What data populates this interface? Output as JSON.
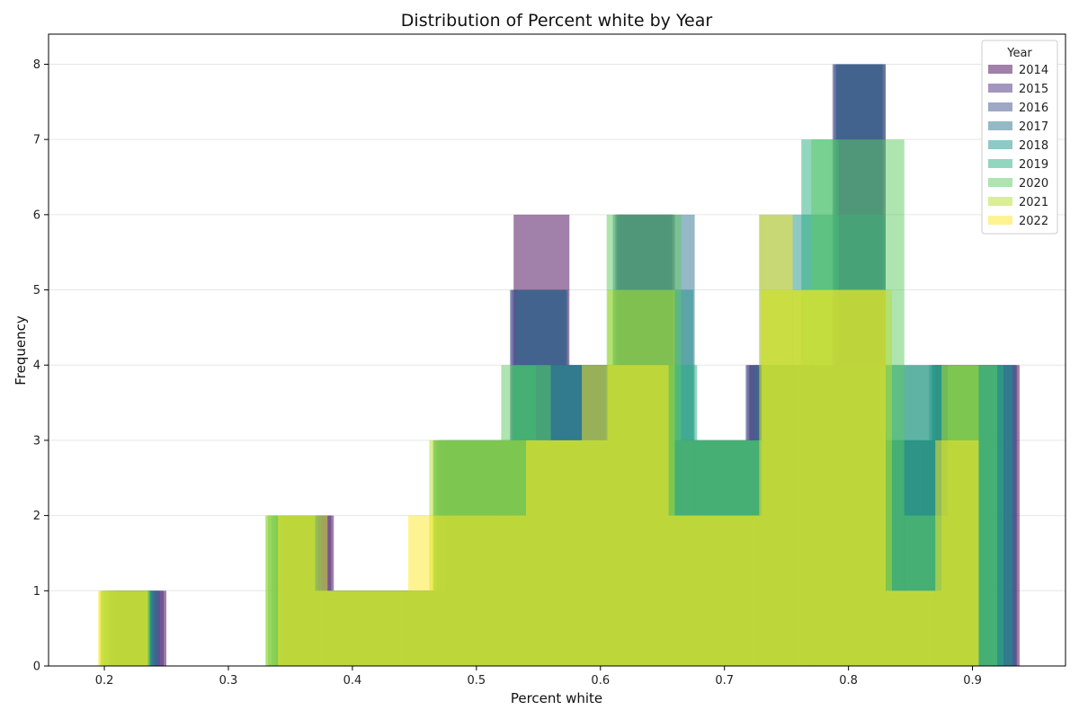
{
  "chart_data": {
    "type": "histogram",
    "title": "Distribution of Percent white by Year",
    "xlabel": "Percent white",
    "ylabel": "Frequency",
    "xlim": [
      0.155,
      0.975
    ],
    "ylim": [
      0,
      8.4
    ],
    "x_ticks": [
      "0.2",
      "0.3",
      "0.4",
      "0.5",
      "0.6",
      "0.7",
      "0.8",
      "0.9"
    ],
    "y_ticks": [
      "0",
      "1",
      "2",
      "3",
      "4",
      "5",
      "6",
      "7",
      "8"
    ],
    "grid": "y",
    "legend": {
      "title": "Year",
      "position": "top-right"
    },
    "series": [
      {
        "name": "2014",
        "color": "#440154",
        "bins": [
          {
            "x0": 0.21,
            "x1": 0.25,
            "y": 1
          },
          {
            "x0": 0.345,
            "x1": 0.385,
            "y": 2
          },
          {
            "x0": 0.385,
            "x1": 0.43,
            "y": 1
          },
          {
            "x0": 0.43,
            "x1": 0.475,
            "y": 1
          },
          {
            "x0": 0.475,
            "x1": 0.53,
            "y": 3
          },
          {
            "x0": 0.53,
            "x1": 0.575,
            "y": 6
          },
          {
            "x0": 0.575,
            "x1": 0.615,
            "y": 4
          },
          {
            "x0": 0.615,
            "x1": 0.66,
            "y": 6
          },
          {
            "x0": 0.66,
            "x1": 0.72,
            "y": 3
          },
          {
            "x0": 0.72,
            "x1": 0.79,
            "y": 4
          },
          {
            "x0": 0.79,
            "x1": 0.83,
            "y": 8
          },
          {
            "x0": 0.83,
            "x1": 0.87,
            "y": 3
          },
          {
            "x0": 0.87,
            "x1": 0.938,
            "y": 4
          }
        ]
      },
      {
        "name": "2015",
        "color": "#472d7b",
        "bins": [
          {
            "x0": 0.208,
            "x1": 0.248,
            "y": 1
          },
          {
            "x0": 0.342,
            "x1": 0.383,
            "y": 2
          },
          {
            "x0": 0.383,
            "x1": 0.425,
            "y": 1
          },
          {
            "x0": 0.425,
            "x1": 0.47,
            "y": 1
          },
          {
            "x0": 0.47,
            "x1": 0.528,
            "y": 3
          },
          {
            "x0": 0.528,
            "x1": 0.573,
            "y": 5
          },
          {
            "x0": 0.573,
            "x1": 0.613,
            "y": 4
          },
          {
            "x0": 0.613,
            "x1": 0.658,
            "y": 6
          },
          {
            "x0": 0.658,
            "x1": 0.718,
            "y": 3
          },
          {
            "x0": 0.718,
            "x1": 0.788,
            "y": 4
          },
          {
            "x0": 0.788,
            "x1": 0.828,
            "y": 8
          },
          {
            "x0": 0.828,
            "x1": 0.868,
            "y": 3
          },
          {
            "x0": 0.868,
            "x1": 0.936,
            "y": 4
          }
        ]
      },
      {
        "name": "2016",
        "color": "#3b528b",
        "bins": [
          {
            "x0": 0.205,
            "x1": 0.245,
            "y": 1
          },
          {
            "x0": 0.34,
            "x1": 0.38,
            "y": 2
          },
          {
            "x0": 0.38,
            "x1": 0.423,
            "y": 1
          },
          {
            "x0": 0.423,
            "x1": 0.468,
            "y": 1
          },
          {
            "x0": 0.468,
            "x1": 0.527,
            "y": 3
          },
          {
            "x0": 0.527,
            "x1": 0.572,
            "y": 5
          },
          {
            "x0": 0.572,
            "x1": 0.612,
            "y": 4
          },
          {
            "x0": 0.612,
            "x1": 0.657,
            "y": 6
          },
          {
            "x0": 0.657,
            "x1": 0.717,
            "y": 3
          },
          {
            "x0": 0.717,
            "x1": 0.787,
            "y": 4
          },
          {
            "x0": 0.787,
            "x1": 0.827,
            "y": 8
          },
          {
            "x0": 0.827,
            "x1": 0.867,
            "y": 3
          },
          {
            "x0": 0.867,
            "x1": 0.935,
            "y": 4
          }
        ]
      },
      {
        "name": "2017",
        "color": "#2c728e",
        "bins": [
          {
            "x0": 0.203,
            "x1": 0.243,
            "y": 1
          },
          {
            "x0": 0.338,
            "x1": 0.378,
            "y": 2
          },
          {
            "x0": 0.378,
            "x1": 0.42,
            "y": 1
          },
          {
            "x0": 0.42,
            "x1": 0.466,
            "y": 1
          },
          {
            "x0": 0.466,
            "x1": 0.532,
            "y": 3
          },
          {
            "x0": 0.532,
            "x1": 0.574,
            "y": 5
          },
          {
            "x0": 0.574,
            "x1": 0.61,
            "y": 4
          },
          {
            "x0": 0.61,
            "x1": 0.676,
            "y": 6
          },
          {
            "x0": 0.676,
            "x1": 0.724,
            "y": 3
          },
          {
            "x0": 0.724,
            "x1": 0.79,
            "y": 4
          },
          {
            "x0": 0.79,
            "x1": 0.83,
            "y": 8
          },
          {
            "x0": 0.83,
            "x1": 0.866,
            "y": 4
          },
          {
            "x0": 0.866,
            "x1": 0.934,
            "y": 4
          }
        ]
      },
      {
        "name": "2018",
        "color": "#21918c",
        "bins": [
          {
            "x0": 0.2,
            "x1": 0.24,
            "y": 1
          },
          {
            "x0": 0.335,
            "x1": 0.375,
            "y": 2
          },
          {
            "x0": 0.375,
            "x1": 0.418,
            "y": 1
          },
          {
            "x0": 0.418,
            "x1": 0.47,
            "y": 1
          },
          {
            "x0": 0.47,
            "x1": 0.53,
            "y": 3
          },
          {
            "x0": 0.53,
            "x1": 0.55,
            "y": 4
          },
          {
            "x0": 0.55,
            "x1": 0.61,
            "y": 4
          },
          {
            "x0": 0.61,
            "x1": 0.675,
            "y": 5
          },
          {
            "x0": 0.675,
            "x1": 0.728,
            "y": 3
          },
          {
            "x0": 0.728,
            "x1": 0.795,
            "y": 6
          },
          {
            "x0": 0.795,
            "x1": 0.83,
            "y": 6
          },
          {
            "x0": 0.83,
            "x1": 0.865,
            "y": 3
          },
          {
            "x0": 0.865,
            "x1": 0.932,
            "y": 4
          }
        ]
      },
      {
        "name": "2019",
        "color": "#27ad81",
        "bins": [
          {
            "x0": 0.198,
            "x1": 0.238,
            "y": 1
          },
          {
            "x0": 0.332,
            "x1": 0.372,
            "y": 2
          },
          {
            "x0": 0.372,
            "x1": 0.415,
            "y": 1
          },
          {
            "x0": 0.415,
            "x1": 0.465,
            "y": 1
          },
          {
            "x0": 0.465,
            "x1": 0.528,
            "y": 3
          },
          {
            "x0": 0.528,
            "x1": 0.548,
            "y": 4
          },
          {
            "x0": 0.548,
            "x1": 0.605,
            "y": 3
          },
          {
            "x0": 0.605,
            "x1": 0.678,
            "y": 4
          },
          {
            "x0": 0.678,
            "x1": 0.73,
            "y": 3
          },
          {
            "x0": 0.73,
            "x1": 0.762,
            "y": 4
          },
          {
            "x0": 0.762,
            "x1": 0.792,
            "y": 7
          },
          {
            "x0": 0.792,
            "x1": 0.86,
            "y": 4
          },
          {
            "x0": 0.86,
            "x1": 0.925,
            "y": 4
          }
        ]
      },
      {
        "name": "2020",
        "color": "#5ec962",
        "bins": [
          {
            "x0": 0.197,
            "x1": 0.237,
            "y": 1
          },
          {
            "x0": 0.33,
            "x1": 0.37,
            "y": 2
          },
          {
            "x0": 0.37,
            "x1": 0.412,
            "y": 1
          },
          {
            "x0": 0.412,
            "x1": 0.465,
            "y": 1
          },
          {
            "x0": 0.465,
            "x1": 0.52,
            "y": 3
          },
          {
            "x0": 0.52,
            "x1": 0.56,
            "y": 4
          },
          {
            "x0": 0.56,
            "x1": 0.605,
            "y": 3
          },
          {
            "x0": 0.605,
            "x1": 0.665,
            "y": 6
          },
          {
            "x0": 0.665,
            "x1": 0.73,
            "y": 3
          },
          {
            "x0": 0.73,
            "x1": 0.77,
            "y": 5
          },
          {
            "x0": 0.77,
            "x1": 0.845,
            "y": 7
          },
          {
            "x0": 0.845,
            "x1": 0.88,
            "y": 2
          },
          {
            "x0": 0.88,
            "x1": 0.92,
            "y": 4
          }
        ]
      },
      {
        "name": "2021",
        "color": "#b5de2b",
        "bins": [
          {
            "x0": 0.196,
            "x1": 0.236,
            "y": 1
          },
          {
            "x0": 0.33,
            "x1": 0.37,
            "y": 2
          },
          {
            "x0": 0.37,
            "x1": 0.41,
            "y": 1
          },
          {
            "x0": 0.41,
            "x1": 0.462,
            "y": 1
          },
          {
            "x0": 0.462,
            "x1": 0.515,
            "y": 3
          },
          {
            "x0": 0.515,
            "x1": 0.56,
            "y": 3
          },
          {
            "x0": 0.56,
            "x1": 0.606,
            "y": 3
          },
          {
            "x0": 0.606,
            "x1": 0.66,
            "y": 5
          },
          {
            "x0": 0.66,
            "x1": 0.73,
            "y": 2
          },
          {
            "x0": 0.73,
            "x1": 0.77,
            "y": 5
          },
          {
            "x0": 0.77,
            "x1": 0.835,
            "y": 5
          },
          {
            "x0": 0.835,
            "x1": 0.875,
            "y": 1
          },
          {
            "x0": 0.875,
            "x1": 0.905,
            "y": 4
          }
        ]
      },
      {
        "name": "2022",
        "color": "#fde725",
        "bins": [
          {
            "x0": 0.195,
            "x1": 0.235,
            "y": 1
          },
          {
            "x0": 0.34,
            "x1": 0.38,
            "y": 2
          },
          {
            "x0": 0.38,
            "x1": 0.445,
            "y": 1
          },
          {
            "x0": 0.445,
            "x1": 0.48,
            "y": 2
          },
          {
            "x0": 0.48,
            "x1": 0.54,
            "y": 2
          },
          {
            "x0": 0.54,
            "x1": 0.585,
            "y": 3
          },
          {
            "x0": 0.585,
            "x1": 0.655,
            "y": 4
          },
          {
            "x0": 0.655,
            "x1": 0.728,
            "y": 2
          },
          {
            "x0": 0.728,
            "x1": 0.755,
            "y": 6
          },
          {
            "x0": 0.755,
            "x1": 0.83,
            "y": 5
          },
          {
            "x0": 0.83,
            "x1": 0.87,
            "y": 1
          },
          {
            "x0": 0.87,
            "x1": 0.905,
            "y": 3
          }
        ]
      }
    ]
  }
}
